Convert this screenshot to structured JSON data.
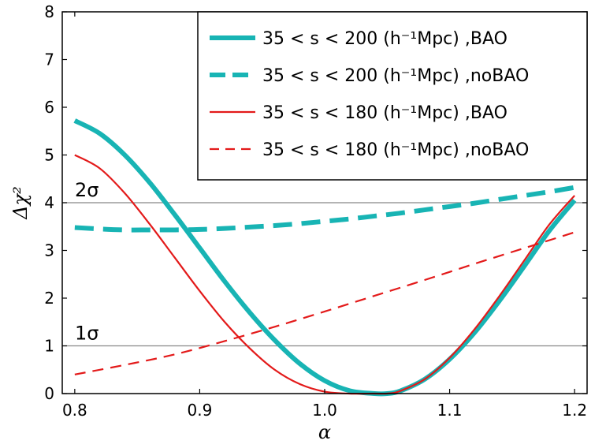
{
  "chart_data": {
    "type": "line",
    "title": "",
    "xlabel": "α",
    "ylabel": "Δχ²",
    "xlim": [
      0.79,
      1.21
    ],
    "ylim": [
      0,
      8
    ],
    "xticks": [
      0.8,
      0.9,
      1.0,
      1.1,
      1.2
    ],
    "xtick_labels": [
      "0.8",
      "0.9",
      "1.0",
      "1.1",
      "1.2"
    ],
    "yticks": [
      0,
      1,
      2,
      3,
      4,
      5,
      6,
      7,
      8
    ],
    "ytick_labels": [
      "0",
      "1",
      "2",
      "3",
      "4",
      "5",
      "6",
      "7",
      "8"
    ],
    "grid": false,
    "legend_position": "top-right",
    "reference_lines": [
      {
        "y": 1,
        "label": "1σ",
        "color": "#888888"
      },
      {
        "y": 4,
        "label": "2σ",
        "color": "#888888"
      }
    ],
    "series": [
      {
        "name": "35 < s < 200 (h⁻¹Mpc) ,BAO",
        "color": "#18b4b4",
        "style": "solid",
        "weight": "thick",
        "x": [
          0.8,
          0.82,
          0.84,
          0.86,
          0.88,
          0.9,
          0.92,
          0.94,
          0.96,
          0.98,
          1.0,
          1.02,
          1.04,
          1.05,
          1.06,
          1.08,
          1.1,
          1.12,
          1.14,
          1.16,
          1.18,
          1.2
        ],
        "y": [
          5.72,
          5.45,
          5.0,
          4.42,
          3.75,
          3.05,
          2.35,
          1.7,
          1.12,
          0.63,
          0.27,
          0.06,
          0.0,
          0.0,
          0.05,
          0.3,
          0.72,
          1.28,
          1.95,
          2.68,
          3.42,
          4.05
        ]
      },
      {
        "name": "35 < s < 200 (h⁻¹Mpc) ,noBAO",
        "color": "#18b4b4",
        "style": "dashed",
        "weight": "thick",
        "x": [
          0.8,
          0.82,
          0.84,
          0.86,
          0.88,
          0.9,
          0.92,
          0.94,
          0.96,
          0.98,
          1.0,
          1.02,
          1.04,
          1.06,
          1.08,
          1.1,
          1.12,
          1.14,
          1.16,
          1.18,
          1.2
        ],
        "y": [
          3.48,
          3.45,
          3.43,
          3.43,
          3.43,
          3.44,
          3.46,
          3.49,
          3.52,
          3.56,
          3.61,
          3.66,
          3.72,
          3.78,
          3.85,
          3.92,
          3.99,
          4.07,
          4.15,
          4.23,
          4.32
        ]
      },
      {
        "name": "35 < s < 180 (h⁻¹Mpc) ,BAO",
        "color": "#e31a1a",
        "style": "solid",
        "weight": "thin",
        "x": [
          0.8,
          0.82,
          0.84,
          0.86,
          0.88,
          0.9,
          0.92,
          0.94,
          0.96,
          0.98,
          1.0,
          1.02,
          1.04,
          1.05,
          1.06,
          1.08,
          1.1,
          1.12,
          1.14,
          1.16,
          1.18,
          1.2
        ],
        "y": [
          5.0,
          4.72,
          4.2,
          3.55,
          2.85,
          2.15,
          1.5,
          0.95,
          0.5,
          0.2,
          0.04,
          0.0,
          0.0,
          0.0,
          0.05,
          0.3,
          0.75,
          1.35,
          2.05,
          2.8,
          3.55,
          4.15
        ]
      },
      {
        "name": "35 < s < 180 (h⁻¹Mpc) ,noBAO",
        "color": "#e31a1a",
        "style": "dashed",
        "weight": "thin",
        "x": [
          0.8,
          0.84,
          0.88,
          0.92,
          0.96,
          1.0,
          1.04,
          1.08,
          1.12,
          1.16,
          1.2
        ],
        "y": [
          0.4,
          0.6,
          0.82,
          1.1,
          1.4,
          1.72,
          2.05,
          2.38,
          2.72,
          3.05,
          3.38
        ]
      }
    ]
  }
}
